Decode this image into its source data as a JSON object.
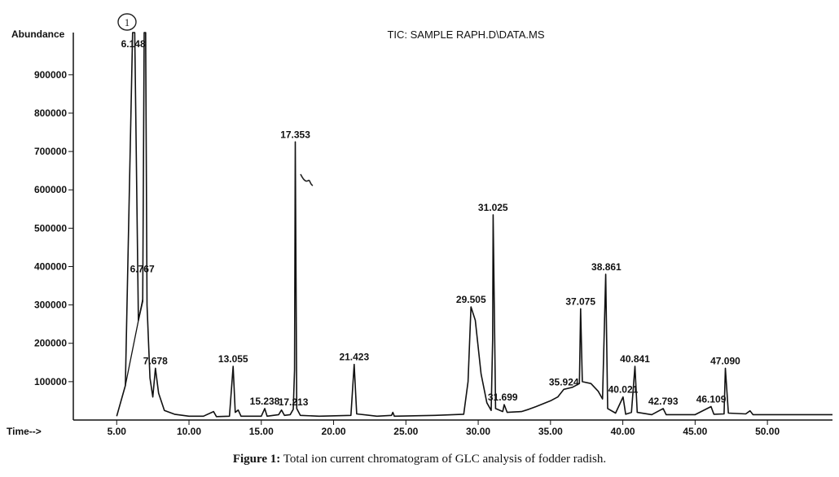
{
  "chart_data": {
    "type": "line",
    "title": "TIC: SAMPLE RAPH.D\\DATA.MS",
    "ylabel": "Abundance",
    "xlabel": "Time-->",
    "xlim": [
      2.0,
      54.5
    ],
    "ylim": [
      0,
      1010000
    ],
    "x_ticks": [
      5.0,
      10.0,
      15.0,
      20.0,
      25.0,
      30.0,
      35.0,
      40.0,
      45.0,
      50.0
    ],
    "x_tick_labels": [
      "5.00",
      "10.00",
      "15.00",
      "20.00",
      "25.00",
      "30.00",
      "35.00",
      "40.00",
      "45.00",
      "50.00"
    ],
    "y_ticks": [
      100000,
      200000,
      300000,
      400000,
      500000,
      600000,
      700000,
      800000,
      900000
    ],
    "y_tick_labels": [
      "100000",
      "200000",
      "300000",
      "400000",
      "500000",
      "600000",
      "700000",
      "800000",
      "900000"
    ],
    "grid": false,
    "series": [
      {
        "points": [
          [
            5.0,
            10000
          ],
          [
            5.6,
            90000
          ],
          [
            6.1,
            1010000
          ],
          [
            6.25,
            1010000
          ],
          [
            6.5,
            260000
          ],
          [
            6.8,
            310000
          ],
          [
            6.9,
            1010000
          ],
          [
            7.0,
            1010000
          ],
          [
            7.1,
            300000
          ],
          [
            7.3,
            110000
          ],
          [
            7.5,
            60000
          ],
          [
            7.68,
            135000
          ],
          [
            7.9,
            70000
          ],
          [
            8.3,
            25000
          ],
          [
            9.0,
            15000
          ],
          [
            10.0,
            10000
          ],
          [
            11.0,
            10000
          ],
          [
            11.7,
            22000
          ],
          [
            11.9,
            9000
          ],
          [
            12.8,
            10000
          ],
          [
            13.05,
            140000
          ],
          [
            13.2,
            20000
          ],
          [
            13.4,
            26000
          ],
          [
            13.6,
            10000
          ],
          [
            15.0,
            10000
          ],
          [
            15.24,
            30000
          ],
          [
            15.4,
            10000
          ],
          [
            16.2,
            14000
          ],
          [
            16.4,
            26000
          ],
          [
            16.6,
            12000
          ],
          [
            17.0,
            14000
          ],
          [
            17.21,
            28000
          ],
          [
            17.3,
            130000
          ],
          [
            17.35,
            725000
          ],
          [
            17.45,
            30000
          ],
          [
            17.7,
            12000
          ],
          [
            19.0,
            10000
          ],
          [
            21.2,
            12000
          ],
          [
            21.42,
            145000
          ],
          [
            21.6,
            16000
          ],
          [
            23.0,
            10000
          ],
          [
            24.0,
            12000
          ],
          [
            24.1,
            20000
          ],
          [
            24.2,
            10000
          ],
          [
            27.0,
            12000
          ],
          [
            29.0,
            15000
          ],
          [
            29.3,
            100000
          ],
          [
            29.5,
            295000
          ],
          [
            29.8,
            260000
          ],
          [
            30.2,
            120000
          ],
          [
            30.6,
            45000
          ],
          [
            30.9,
            25000
          ],
          [
            31.0,
            210000
          ],
          [
            31.03,
            535000
          ],
          [
            31.2,
            30000
          ],
          [
            31.7,
            22000
          ],
          [
            31.8,
            40000
          ],
          [
            32.0,
            20000
          ],
          [
            33.0,
            22000
          ],
          [
            33.5,
            28000
          ],
          [
            34.0,
            35000
          ],
          [
            35.0,
            50000
          ],
          [
            35.5,
            60000
          ],
          [
            35.92,
            80000
          ],
          [
            36.5,
            85000
          ],
          [
            37.0,
            95000
          ],
          [
            37.08,
            290000
          ],
          [
            37.2,
            100000
          ],
          [
            37.8,
            95000
          ],
          [
            38.3,
            75000
          ],
          [
            38.6,
            55000
          ],
          [
            38.82,
            380000
          ],
          [
            38.95,
            30000
          ],
          [
            39.5,
            18000
          ],
          [
            40.02,
            60000
          ],
          [
            40.2,
            15000
          ],
          [
            40.6,
            20000
          ],
          [
            40.84,
            140000
          ],
          [
            41.0,
            20000
          ],
          [
            42.0,
            14000
          ],
          [
            42.79,
            30000
          ],
          [
            43.0,
            14000
          ],
          [
            45.0,
            14000
          ],
          [
            46.1,
            35000
          ],
          [
            46.3,
            15000
          ],
          [
            47.0,
            16000
          ],
          [
            47.09,
            135000
          ],
          [
            47.3,
            18000
          ],
          [
            48.5,
            16000
          ],
          [
            48.8,
            24000
          ],
          [
            49.0,
            14000
          ],
          [
            50.0,
            14000
          ],
          [
            52.0,
            14000
          ],
          [
            54.5,
            14000
          ]
        ]
      }
    ],
    "secondary_trace": [
      [
        5.6,
        90000
      ],
      [
        6.8,
        315000
      ]
    ],
    "peak_labels": [
      {
        "x": 6.148,
        "y": 1010000,
        "label": "6.148"
      },
      {
        "x": 6.767,
        "y": 375000,
        "label": "6.767"
      },
      {
        "x": 7.678,
        "y": 135000,
        "label": "7.678"
      },
      {
        "x": 13.055,
        "y": 140000,
        "label": "13.055"
      },
      {
        "x": 15.238,
        "y": 30000,
        "label": "15.238"
      },
      {
        "x": 17.213,
        "y": 28000,
        "label": "17.213"
      },
      {
        "x": 17.353,
        "y": 725000,
        "label": "17.353"
      },
      {
        "x": 21.423,
        "y": 145000,
        "label": "21.423"
      },
      {
        "x": 29.505,
        "y": 295000,
        "label": "29.505"
      },
      {
        "x": 31.025,
        "y": 535000,
        "label": "31.025"
      },
      {
        "x": 31.699,
        "y": 40000,
        "label": "31.699"
      },
      {
        "x": 35.924,
        "y": 80000,
        "label": "35.924"
      },
      {
        "x": 37.075,
        "y": 290000,
        "label": "37.075"
      },
      {
        "x": 38.861,
        "y": 380000,
        "label": "38.861"
      },
      {
        "x": 40.021,
        "y": 60000,
        "label": "40.021"
      },
      {
        "x": 40.841,
        "y": 140000,
        "label": "40.841"
      },
      {
        "x": 42.793,
        "y": 30000,
        "label": "42.793"
      },
      {
        "x": 46.109,
        "y": 35000,
        "label": "46.109"
      },
      {
        "x": 47.09,
        "y": 135000,
        "label": "47.090"
      }
    ],
    "annotations": [
      "1"
    ]
  },
  "caption": {
    "label": "Figure 1:",
    "text": " Total ion current chromatogram of GLC analysis of fodder radish."
  }
}
